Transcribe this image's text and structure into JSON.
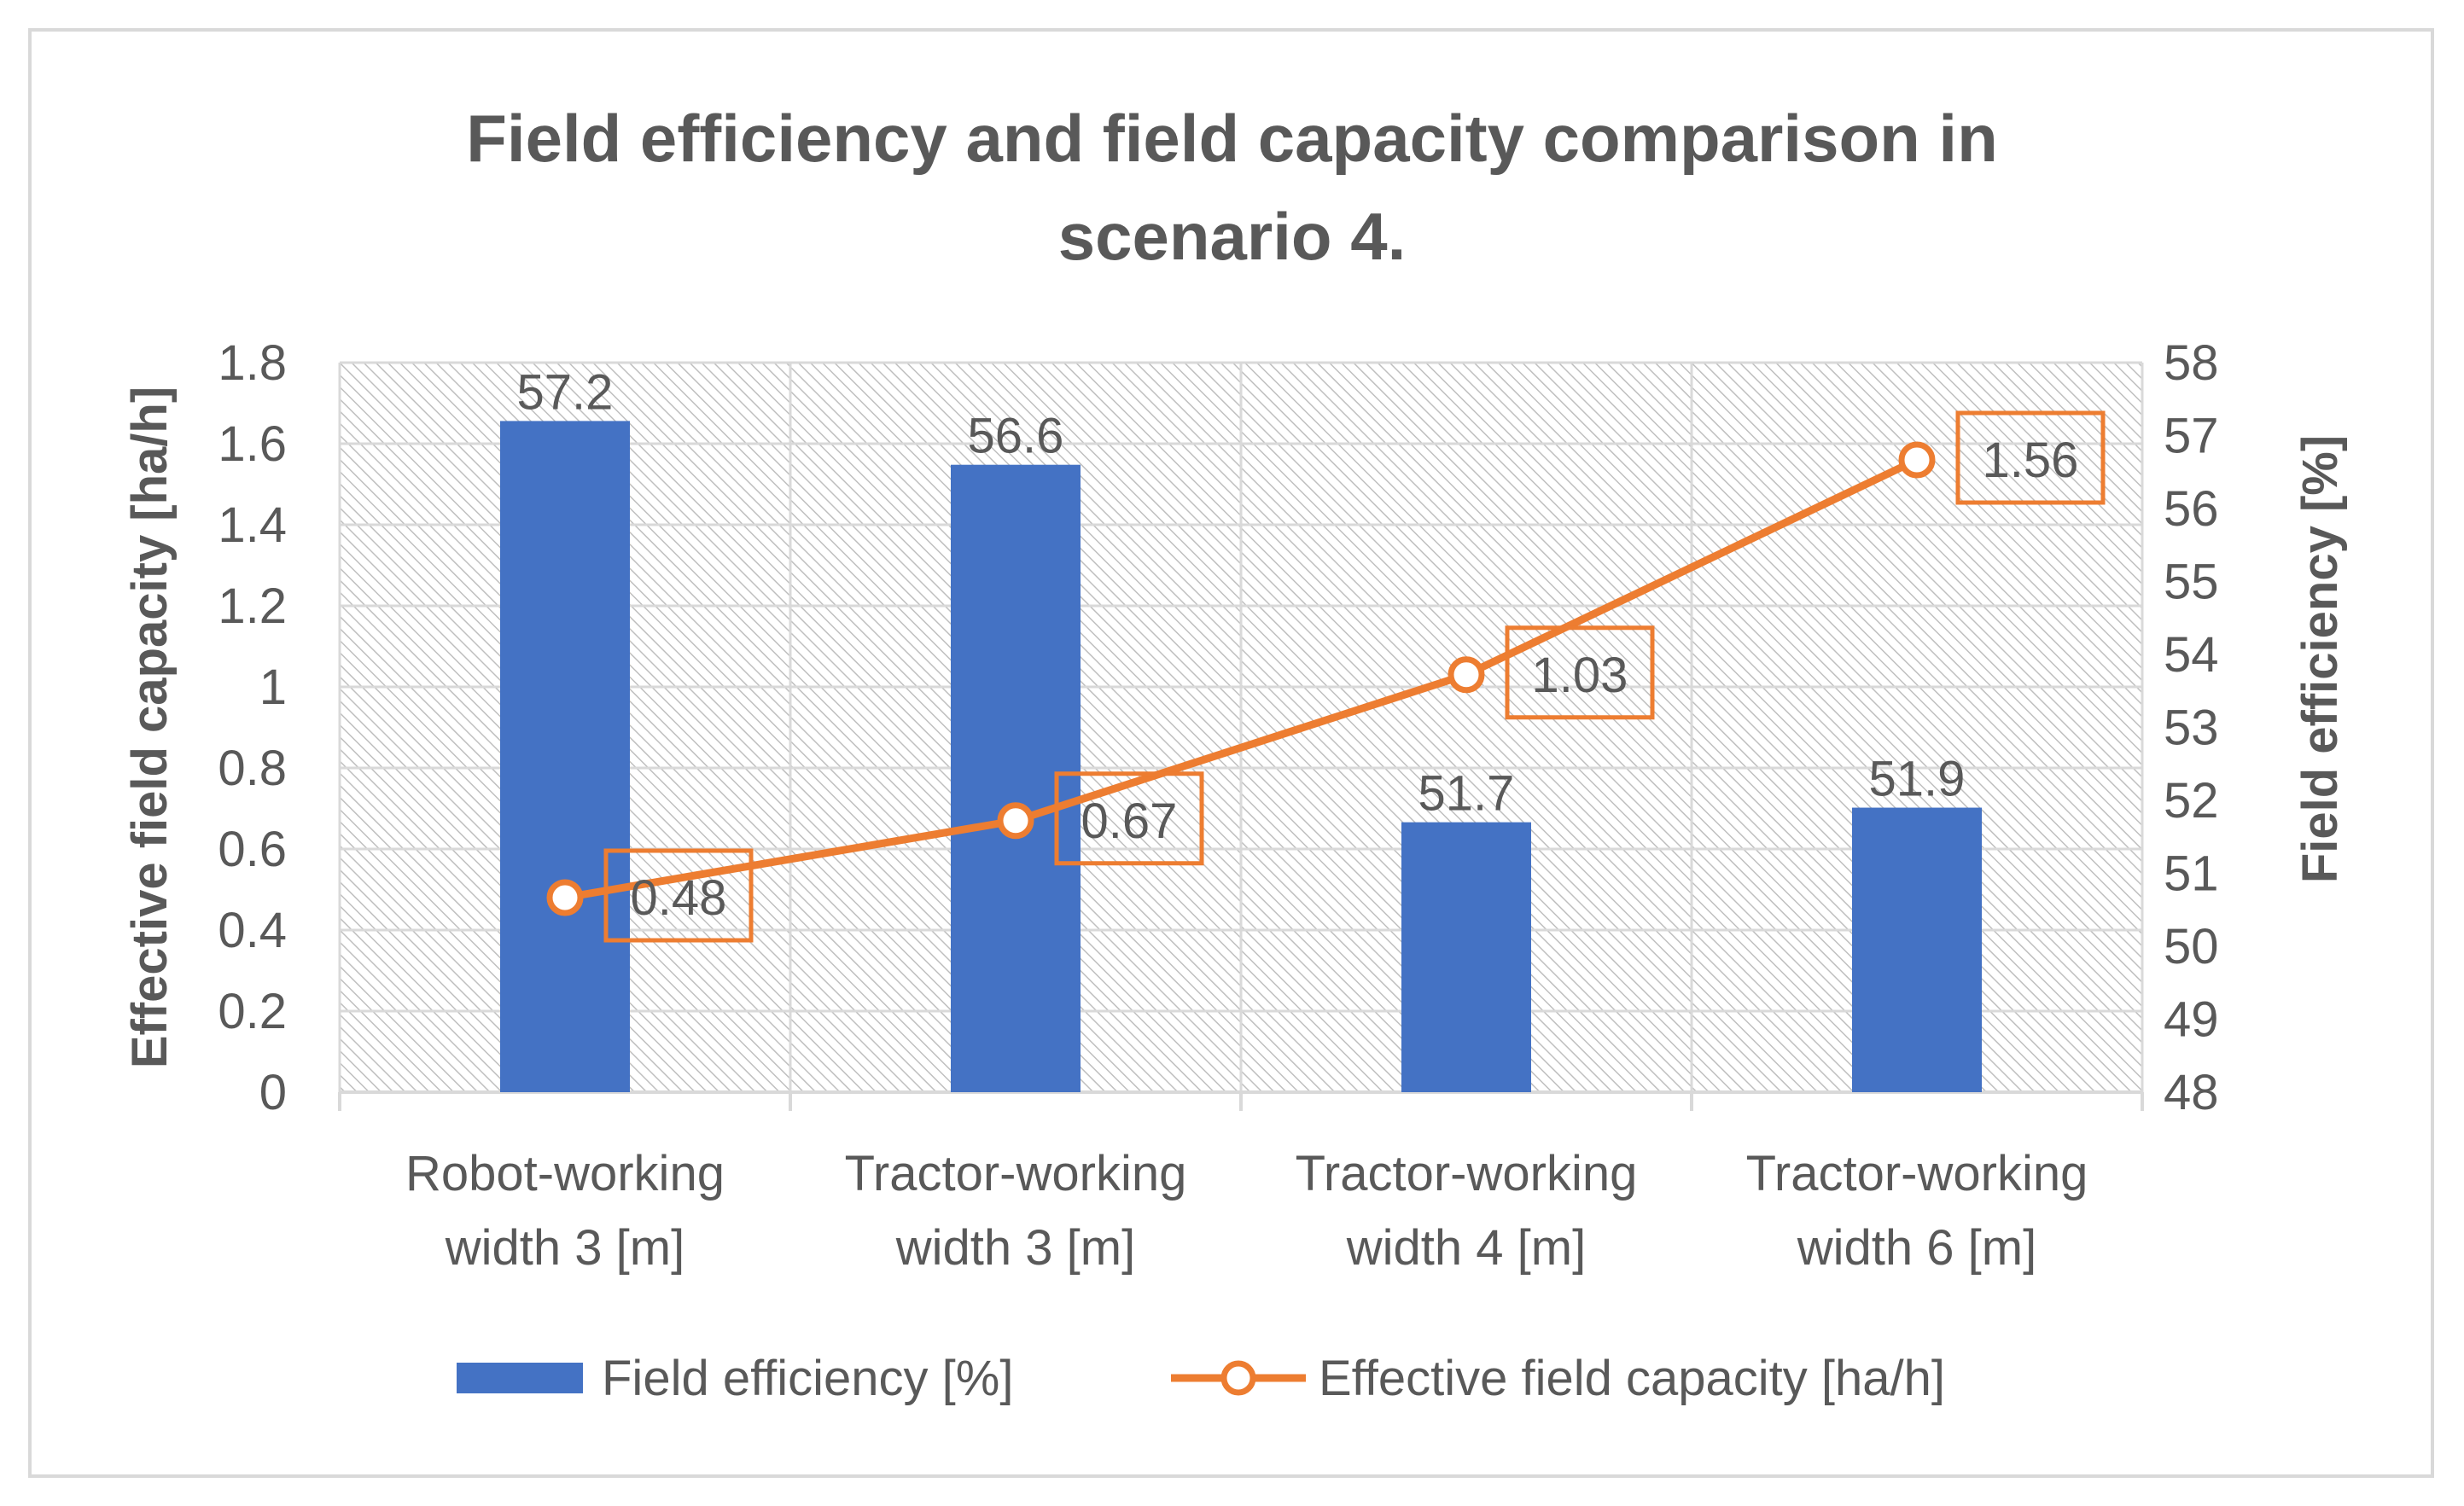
{
  "chart_data": {
    "type": "bar",
    "title_lines": [
      "Field efficiency and field capacity comparison in",
      "scenario 4."
    ],
    "categories": [
      [
        "Robot-working",
        "width 3 [m]"
      ],
      [
        "Tractor-working",
        "width 3 [m]"
      ],
      [
        "Tractor-working",
        "width 4 [m]"
      ],
      [
        "Tractor-working",
        "width 6 [m]"
      ]
    ],
    "series": [
      {
        "name": "Field efficiency [%]",
        "type": "bar",
        "axis": "right",
        "values": [
          57.2,
          56.6,
          51.7,
          51.9
        ],
        "labels": [
          "57.2",
          "56.6",
          "51.7",
          "51.9"
        ],
        "color": "#4472c4"
      },
      {
        "name": "Effective field capacity [ha/h]",
        "type": "line",
        "axis": "left",
        "values": [
          0.48,
          0.67,
          1.03,
          1.56
        ],
        "labels": [
          "0.48",
          "0.67",
          "1.03",
          "1.56"
        ],
        "color": "#ed7d31"
      }
    ],
    "y_left": {
      "label": "Effective field capacity [ha/h]",
      "lim": [
        0,
        1.8
      ],
      "ticks": [
        "0",
        "0.2",
        "0.4",
        "0.6",
        "0.8",
        "1",
        "1.2",
        "1.4",
        "1.6",
        "1.8"
      ]
    },
    "y_right": {
      "label": "Field efficiency [%]",
      "lim": [
        48,
        58
      ],
      "ticks": [
        "48",
        "49",
        "50",
        "51",
        "52",
        "53",
        "54",
        "55",
        "56",
        "57",
        "58"
      ]
    },
    "grid": true,
    "plot_background": "hatched",
    "legend_position": "bottom",
    "colors": {
      "bar": "#4472c4",
      "line": "#ed7d31",
      "text": "#595959",
      "grid": "#d9d9d9",
      "hatch": "#bfbfbf"
    }
  }
}
